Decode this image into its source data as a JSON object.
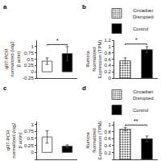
{
  "chart_data": [
    {
      "type": "bar",
      "title": "a",
      "y_label": "qRT-PCR normalized (log2 β actin)",
      "categories": [
        null,
        null
      ],
      "values": [
        0.42,
        0.72
      ],
      "colors": [
        "white",
        "black"
      ],
      "error": [
        0.13,
        0.28
      ],
      "ylim": [
        -0.25,
        1.25
      ],
      "yticks": [
        -0.25,
        0,
        0.25,
        0.5,
        0.75,
        1
      ],
      "grid": false,
      "tick_labels": "y",
      "annotations": [
        {
          "text": "*",
          "x": [
            0,
            1
          ],
          "y": 1.08
        }
      ]
    },
    {
      "type": "bar",
      "title": "b",
      "y_label": "Illumina Normalized Expression (TPM)",
      "categories": [
        null,
        null
      ],
      "series": [
        {
          "name": "Circadian\nDisrupted",
          "color": "white",
          "values": [
            0.55,
            null
          ],
          "error": [
            0.09,
            null
          ]
        },
        {
          "name": "Control",
          "color": "black",
          "values": [
            null,
            0.9
          ],
          "error": [
            null,
            0.1
          ]
        }
      ],
      "ylim": [
        0.0,
        1.2
      ],
      "yticks": [
        0,
        0.2,
        0.4,
        0.6,
        0.8,
        1,
        1.2
      ],
      "grid": false,
      "tick_labels": "y",
      "legend": "upper right",
      "annotations": [
        {
          "text": "*",
          "x": [
            0,
            1
          ],
          "y": 1.08
        }
      ]
    },
    {
      "type": "bar",
      "title": "c",
      "y_label": "qRT-PCR normalized (log2 β actin)",
      "categories": [
        null,
        null
      ],
      "values": [
        0.55,
        0.22
      ],
      "colors": [
        "white",
        "black"
      ],
      "error": [
        0.22,
        0.05
      ],
      "ylim": [
        -0.25,
        1.1
      ],
      "yticks": [
        -0.25,
        0,
        0.25,
        0.5,
        0.75,
        1
      ],
      "grid": false,
      "tick_labels": "y"
    },
    {
      "type": "bar",
      "title": "d",
      "y_label": "Illumina Normalized Expression (TPM)",
      "categories": [
        null,
        null
      ],
      "series": [
        {
          "name": "Circadian\nDisrupted",
          "color": "white",
          "values": [
            0.88,
            null
          ],
          "error": [
            0.05,
            null
          ]
        },
        {
          "name": "Control",
          "color": "black",
          "values": [
            null,
            0.6
          ],
          "error": [
            null,
            0.08
          ]
        }
      ],
      "ylim": [
        0.0,
        1.1
      ],
      "yticks": [
        0,
        0.2,
        0.4,
        0.6,
        0.8,
        1
      ],
      "grid": false,
      "tick_labels": "y",
      "legend": "upper right",
      "annotations": [
        {
          "text": "**",
          "x": [
            0,
            1
          ],
          "y": 1.0
        }
      ]
    }
  ]
}
